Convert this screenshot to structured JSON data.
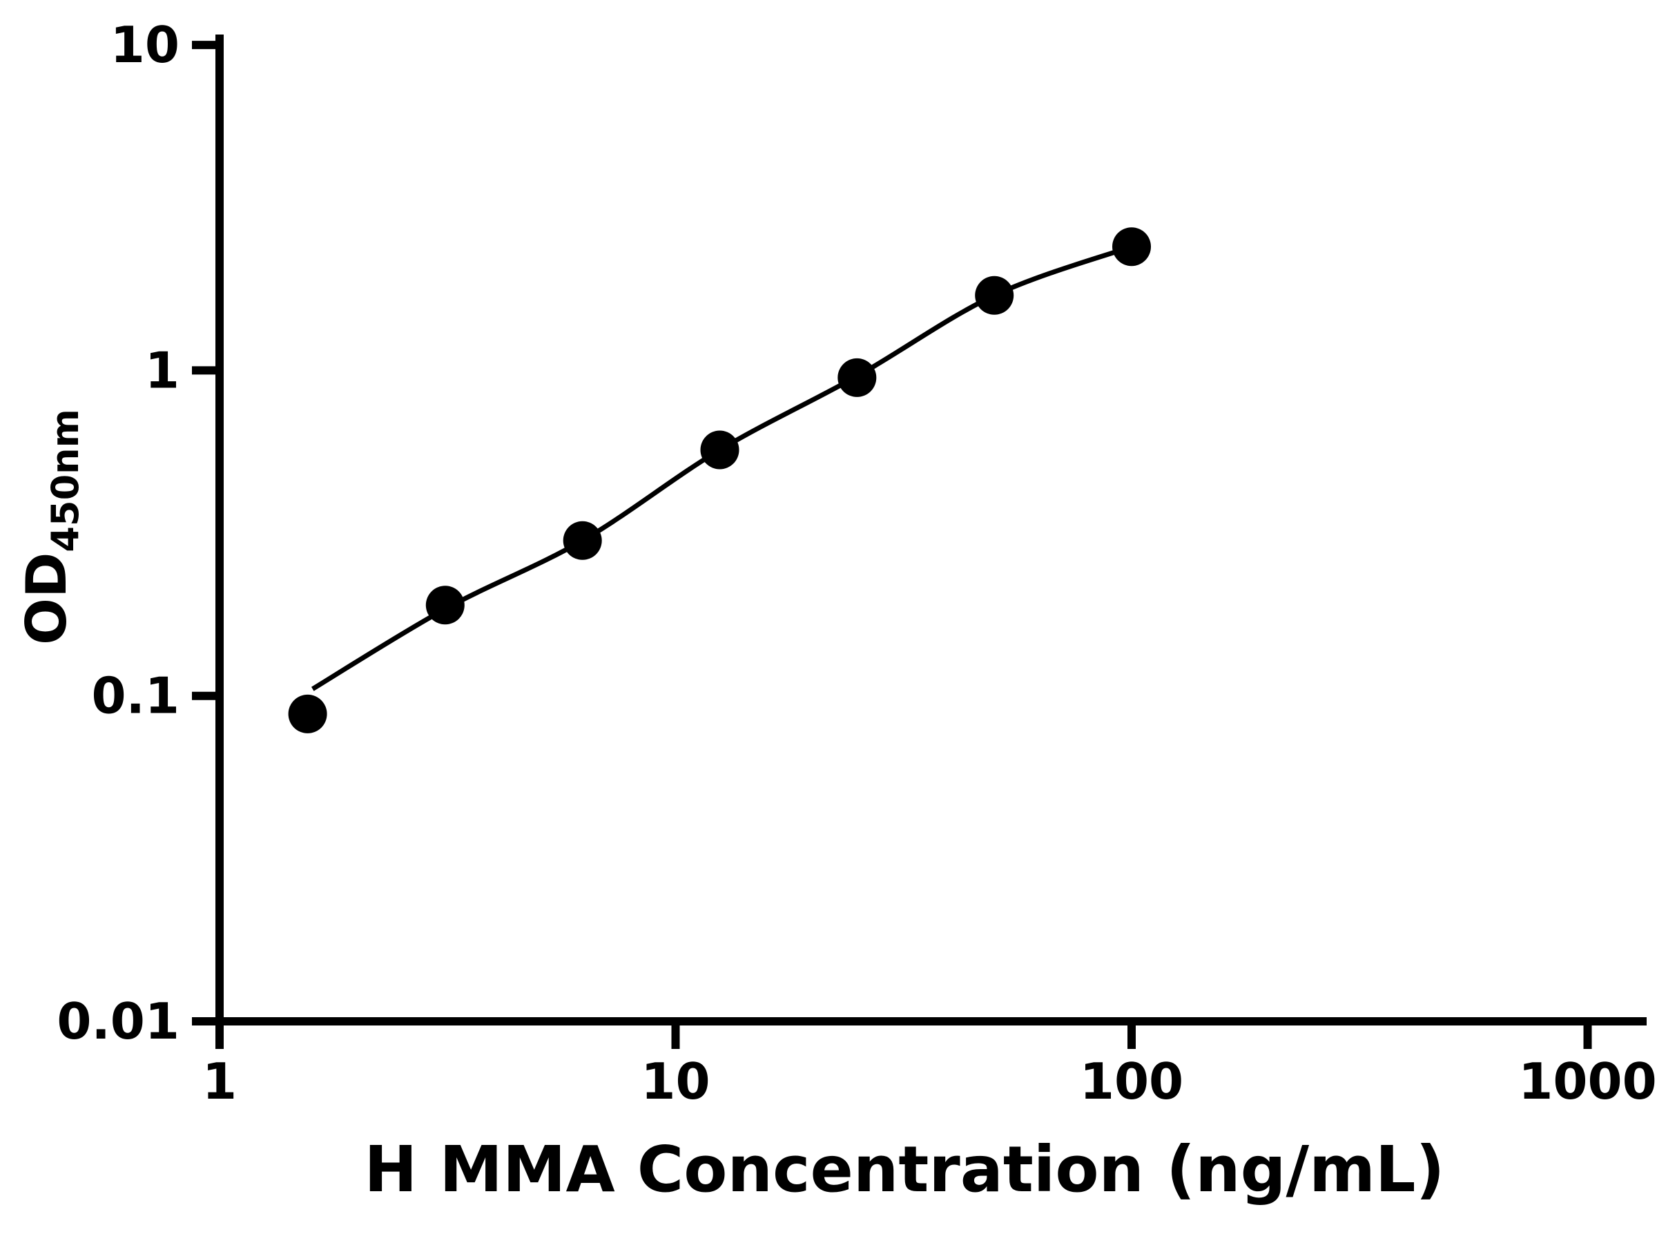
{
  "chart_data": {
    "type": "scatter",
    "title": "",
    "xlabel": "H MMA Concentration (ng/mL)",
    "ylabel_main": "OD",
    "ylabel_sub": "450nm",
    "x_scale": "log",
    "y_scale": "log",
    "xlim": [
      1,
      1000
    ],
    "ylim": [
      0.01,
      10
    ],
    "x_ticks": [
      "1",
      "10",
      "100",
      "1000"
    ],
    "y_ticks": [
      "0.01",
      "0.1",
      "1",
      "10"
    ],
    "grid": false,
    "legend": false,
    "marker_color": "#000000",
    "curve_color": "#000000",
    "axis_color": "#000000",
    "background_color": "#ffffff",
    "points": {
      "x": [
        1.56,
        3.125,
        6.25,
        12.5,
        25,
        50,
        100
      ],
      "y": [
        0.088,
        0.19,
        0.3,
        0.57,
        0.95,
        1.7,
        2.4
      ]
    },
    "fit_curve": {
      "x": [
        1.6,
        3.125,
        6.25,
        12.5,
        25,
        50,
        100
      ],
      "y": [
        0.105,
        0.185,
        0.3,
        0.57,
        0.96,
        1.7,
        2.4
      ]
    }
  }
}
